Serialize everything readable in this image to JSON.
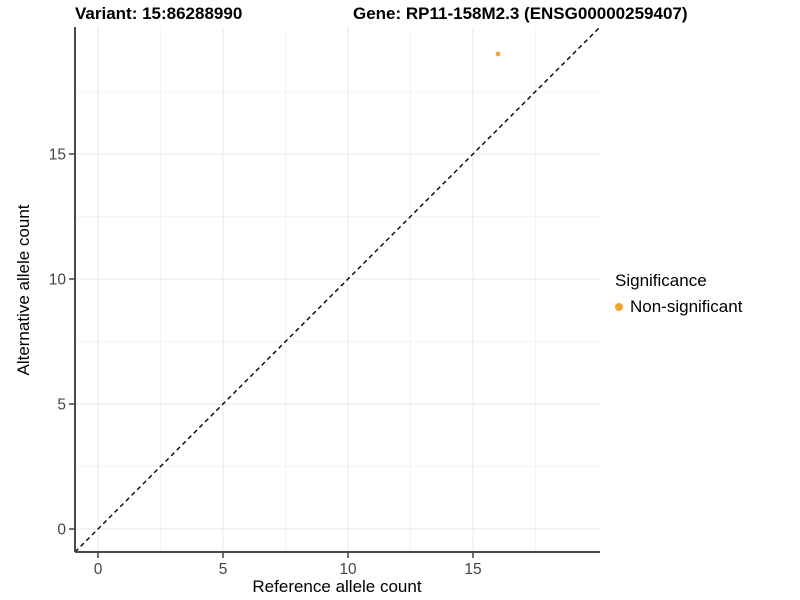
{
  "chart_data": {
    "type": "scatter",
    "title_left": "Variant: 15:86288990",
    "title_right": "Gene: RP11-158M2.3 (ENSG00000259407)",
    "xlabel": "Reference allele count",
    "ylabel": "Alternative allele count",
    "xlim": [
      -0.92,
      20.08
    ],
    "ylim": [
      -0.92,
      20.08
    ],
    "x_major_ticks": [
      0,
      5,
      10,
      15
    ],
    "y_major_ticks": [
      0,
      5,
      10,
      15
    ],
    "x_minor_gridlines": [
      2.5,
      7.5,
      12.5,
      17.5
    ],
    "y_minor_gridlines": [
      2.5,
      7.5,
      12.5,
      17.5
    ],
    "grid": true,
    "legend_position": "right",
    "identity_line": {
      "style": "dashed",
      "slope": 1,
      "intercept": 0,
      "color": "#000000"
    },
    "series": [
      {
        "name": "Non-significant",
        "color": "#F9A32C",
        "points": [
          {
            "x": 16,
            "y": 19
          }
        ]
      }
    ],
    "legend": {
      "title": "Significance",
      "items": [
        {
          "label": "Non-significant",
          "color": "#F9A32C",
          "marker": "circle"
        }
      ]
    },
    "colors": {
      "background": "#ffffff",
      "grid_major": "#e7e7e7",
      "grid_minor": "#f4f4f4",
      "axis_line": "#4a4a4a",
      "tick_mark": "#404040",
      "tick_text": "#454545",
      "point": "#F9A32C"
    }
  }
}
